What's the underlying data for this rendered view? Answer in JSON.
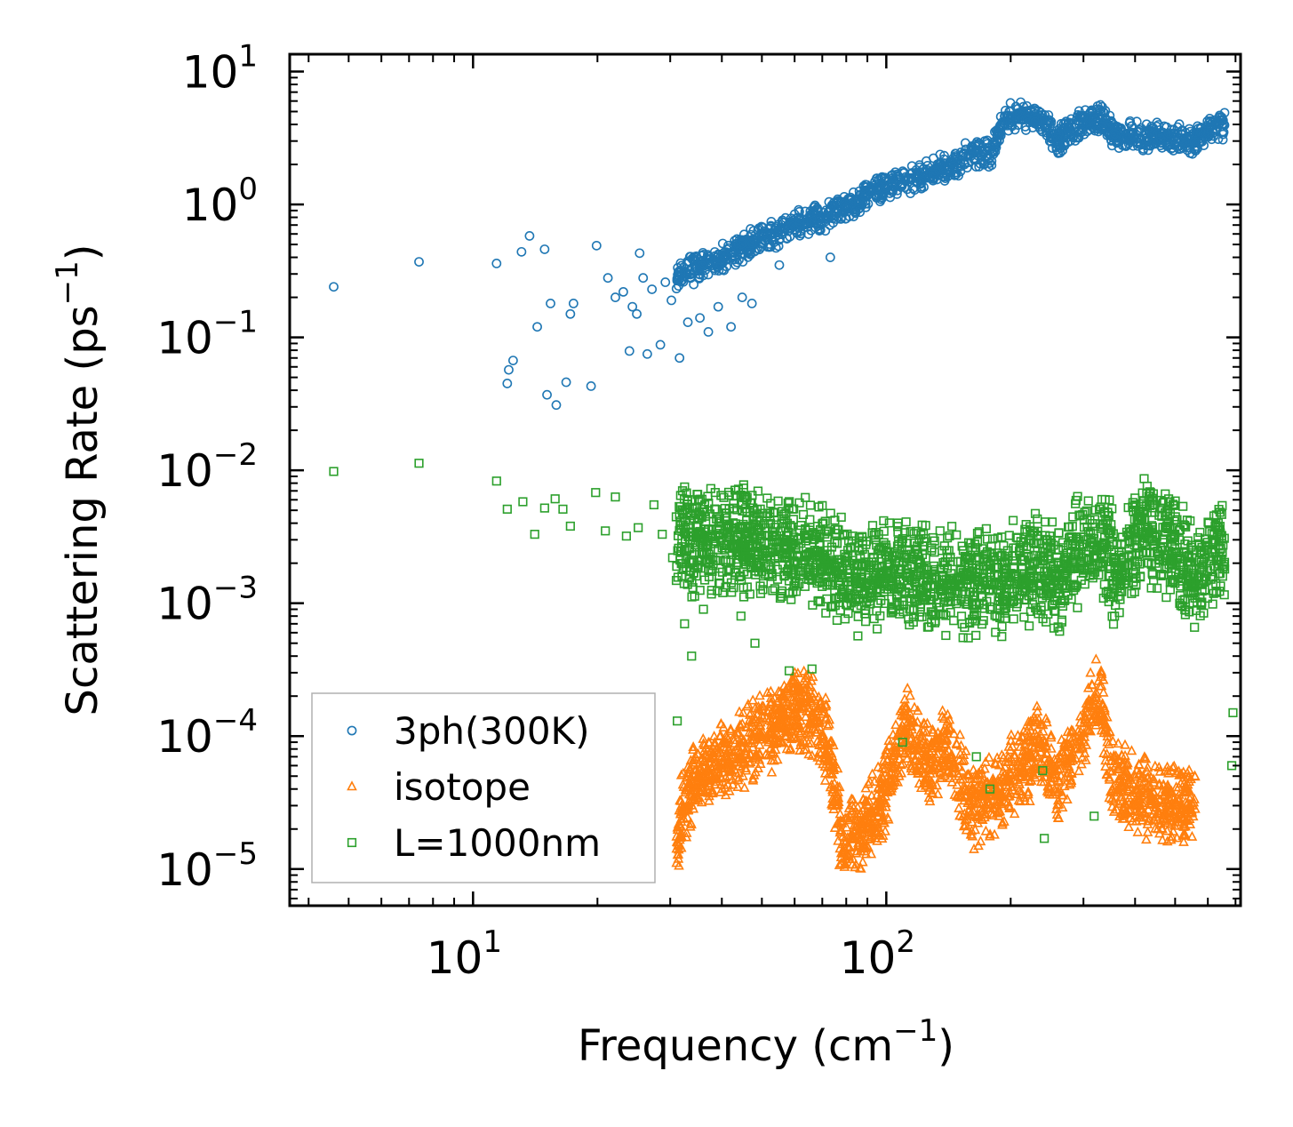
{
  "chart_data": {
    "type": "scatter",
    "title": "",
    "xlabel": "Frequency (cm",
    "xlabel_sup": "−1",
    "xlabel_end": ")",
    "ylabel": "Scattering Rate (ps",
    "ylabel_sup": "−1",
    "ylabel_end": ")",
    "xscale": "log",
    "yscale": "log",
    "xlim": [
      3.6,
      720
    ],
    "ylim": [
      5.3e-06,
      13.5
    ],
    "x_ticks": [
      {
        "value": 10,
        "base": "10",
        "exp": "1"
      },
      {
        "value": 100,
        "base": "10",
        "exp": "2"
      }
    ],
    "y_ticks": [
      {
        "value": 10,
        "base": "10",
        "exp": "1"
      },
      {
        "value": 1,
        "base": "10",
        "exp": "0"
      },
      {
        "value": 0.1,
        "base": "10",
        "exp": "−1"
      },
      {
        "value": 0.01,
        "base": "10",
        "exp": "−2"
      },
      {
        "value": 0.001,
        "base": "10",
        "exp": "−3"
      },
      {
        "value": 0.0001,
        "base": "10",
        "exp": "−4"
      },
      {
        "value": 1e-05,
        "base": "10",
        "exp": "−5"
      }
    ],
    "legend_position": "lower-left",
    "series": [
      {
        "name": "3ph(300K)",
        "marker": "circle",
        "color": "#1f77b4",
        "points": [
          [
            4.6,
            0.24
          ],
          [
            7.4,
            0.37
          ],
          [
            11.4,
            0.36
          ],
          [
            12.1,
            0.045
          ],
          [
            12.2,
            0.057
          ],
          [
            12.5,
            0.067
          ],
          [
            13.1,
            0.44
          ],
          [
            13.7,
            0.58
          ],
          [
            14.3,
            0.12
          ],
          [
            14.9,
            0.46
          ],
          [
            15.1,
            0.037
          ],
          [
            15.4,
            0.18
          ],
          [
            15.9,
            0.031
          ],
          [
            16.8,
            0.046
          ],
          [
            17.2,
            0.15
          ],
          [
            17.5,
            0.18
          ],
          [
            19.3,
            0.043
          ],
          [
            19.9,
            0.49
          ],
          [
            21.2,
            0.28
          ],
          [
            22.1,
            0.2
          ],
          [
            23.1,
            0.22
          ],
          [
            23.9,
            0.079
          ],
          [
            24.3,
            0.17
          ],
          [
            24.9,
            0.15
          ],
          [
            25.3,
            0.43
          ],
          [
            25.8,
            0.28
          ],
          [
            26.4,
            0.075
          ],
          [
            27.1,
            0.23
          ],
          [
            28.4,
            0.088
          ],
          [
            29.2,
            0.26
          ],
          [
            30.2,
            0.19
          ],
          [
            31.6,
            0.07
          ],
          [
            33.1,
            0.13
          ],
          [
            34.2,
            0.25
          ],
          [
            35.4,
            0.14
          ],
          [
            37.1,
            0.11
          ],
          [
            39.2,
            0.17
          ],
          [
            42.1,
            0.12
          ],
          [
            44.8,
            0.2
          ],
          [
            47.3,
            0.18
          ],
          [
            55.1,
            0.35
          ],
          [
            73.2,
            0.4
          ]
        ],
        "trend": [
          [
            31,
            0.3
          ],
          [
            40,
            0.4
          ],
          [
            50,
            0.55
          ],
          [
            60,
            0.7
          ],
          [
            75,
            0.85
          ],
          [
            90,
            1.2
          ],
          [
            105,
            1.45
          ],
          [
            120,
            1.6
          ],
          [
            140,
            1.9
          ],
          [
            160,
            2.4
          ],
          [
            180,
            2.4
          ],
          [
            192,
            4.3
          ],
          [
            210,
            4.8
          ],
          [
            240,
            4.2
          ],
          [
            260,
            3.0
          ],
          [
            300,
            4.2
          ],
          [
            330,
            4.5
          ],
          [
            360,
            3.3
          ],
          [
            420,
            3.3
          ],
          [
            480,
            3.2
          ],
          [
            560,
            3.0
          ],
          [
            600,
            3.5
          ],
          [
            660,
            4.0
          ]
        ]
      },
      {
        "name": "isotope",
        "marker": "triangle",
        "color": "#ff7f0e",
        "trend": [
          [
            31,
            1e-05
          ],
          [
            32,
            3e-05
          ],
          [
            35,
            5e-05
          ],
          [
            40,
            6e-05
          ],
          [
            45,
            8e-05
          ],
          [
            50,
            0.0001
          ],
          [
            55,
            0.00013
          ],
          [
            60,
            0.00016
          ],
          [
            65,
            0.00015
          ],
          [
            70,
            0.00012
          ],
          [
            75,
            4e-05
          ],
          [
            78,
            1.5e-05
          ],
          [
            88,
            2e-05
          ],
          [
            100,
            4e-05
          ],
          [
            112,
            0.00012
          ],
          [
            125,
            6e-05
          ],
          [
            140,
            9e-05
          ],
          [
            160,
            3e-05
          ],
          [
            190,
            4e-05
          ],
          [
            215,
            6e-05
          ],
          [
            235,
            9e-05
          ],
          [
            260,
            4e-05
          ],
          [
            300,
            0.00012
          ],
          [
            330,
            0.0002
          ],
          [
            350,
            5e-05
          ],
          [
            460,
            3e-05
          ],
          [
            560,
            3e-05
          ]
        ]
      },
      {
        "name": "L=1000nm",
        "marker": "square",
        "color": "#2ca02c",
        "points": [
          [
            4.6,
            0.0098
          ],
          [
            7.4,
            0.0113
          ],
          [
            11.4,
            0.0083
          ],
          [
            12.1,
            0.0051
          ],
          [
            13.2,
            0.0058
          ],
          [
            14.1,
            0.0033
          ],
          [
            14.9,
            0.0052
          ],
          [
            15.8,
            0.0061
          ],
          [
            16.5,
            0.0051
          ],
          [
            17.2,
            0.0038
          ],
          [
            19.8,
            0.0068
          ],
          [
            20.9,
            0.0035
          ],
          [
            22.1,
            0.0063
          ],
          [
            23.5,
            0.0032
          ],
          [
            25.1,
            0.0037
          ],
          [
            27.4,
            0.0055
          ],
          [
            28.7,
            0.0033
          ],
          [
            30.4,
            0.0022
          ],
          [
            31.2,
            0.00013
          ],
          [
            32.5,
            0.0007
          ],
          [
            33.8,
            0.0004
          ],
          [
            36.1,
            0.0009
          ],
          [
            40.2,
            0.0012
          ],
          [
            44.5,
            0.0008
          ],
          [
            48.1,
            0.0005
          ],
          [
            58.2,
            0.00031
          ],
          [
            66.1,
            0.00032
          ],
          [
            109.5,
            9e-05
          ],
          [
            165.2,
            7e-05
          ],
          [
            178.2,
            4e-05
          ],
          [
            239.1,
            5.5e-05
          ],
          [
            241.2,
            1.7e-05
          ],
          [
            318.4,
            2.5e-05
          ],
          [
            685.5,
            6e-05
          ],
          [
            690.2,
            0.00015
          ]
        ],
        "trend": [
          [
            31,
            0.003
          ],
          [
            40,
            0.003
          ],
          [
            50,
            0.0028
          ],
          [
            60,
            0.0025
          ],
          [
            70,
            0.0022
          ],
          [
            80,
            0.0017
          ],
          [
            88,
            0.0015
          ],
          [
            100,
            0.0018
          ],
          [
            120,
            0.0016
          ],
          [
            140,
            0.0015
          ],
          [
            160,
            0.0014
          ],
          [
            180,
            0.0014
          ],
          [
            200,
            0.0016
          ],
          [
            220,
            0.0018
          ],
          [
            240,
            0.002
          ],
          [
            260,
            0.0015
          ],
          [
            300,
            0.0028
          ],
          [
            340,
            0.003
          ],
          [
            360,
            0.0014
          ],
          [
            420,
            0.0038
          ],
          [
            480,
            0.003
          ],
          [
            560,
            0.0015
          ],
          [
            600,
            0.0025
          ],
          [
            660,
            0.0028
          ]
        ]
      }
    ]
  }
}
